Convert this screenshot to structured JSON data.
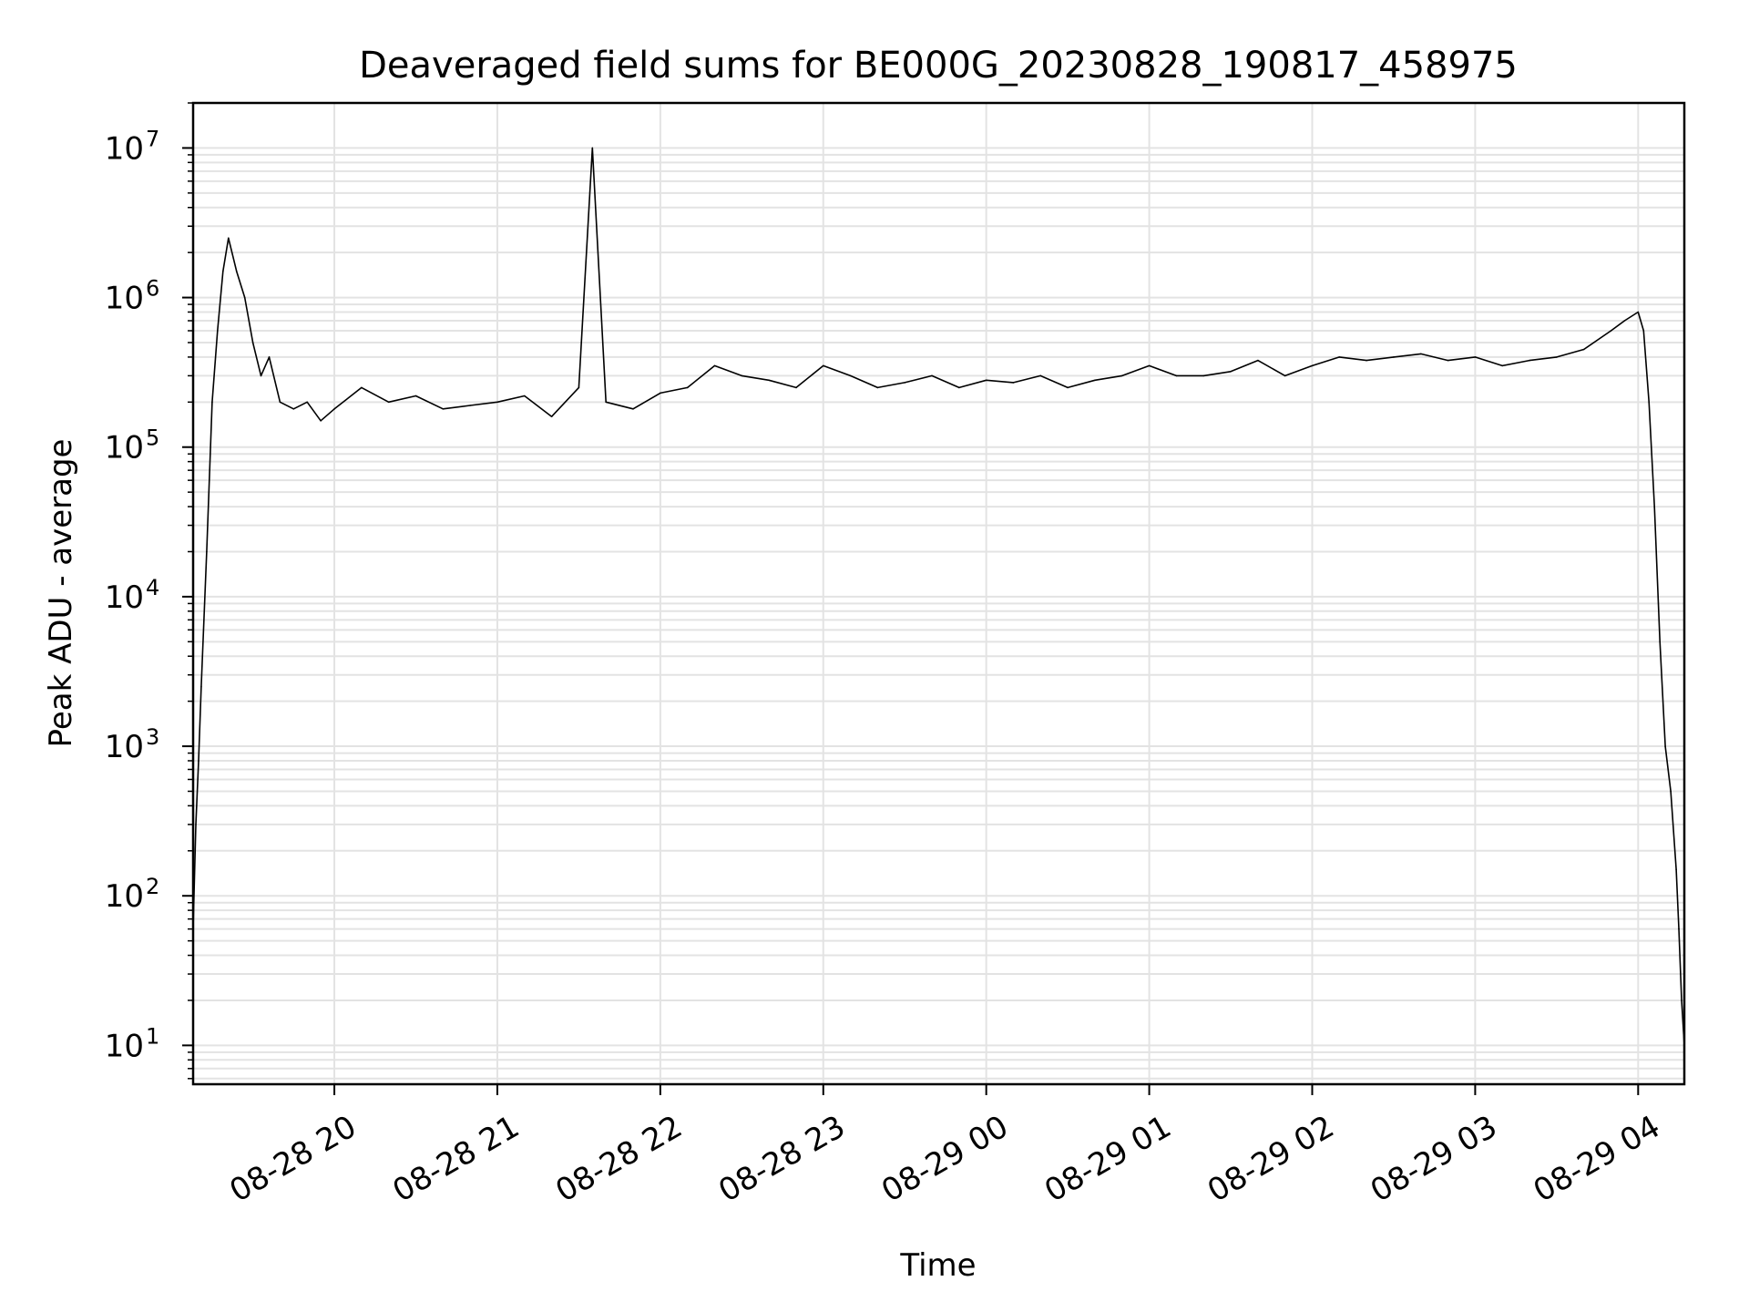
{
  "chart_data": {
    "type": "line",
    "title": "Deaveraged field sums for BE000G_20230828_190817_458975",
    "xlabel": "Time",
    "ylabel": "Peak ADU - average",
    "yscale": "log",
    "ylim": [
      5.5,
      20000000
    ],
    "xlim": [
      "2023-08-28 19:08",
      "2023-08-29 04:17"
    ],
    "x_tick_labels": [
      "08-28 20",
      "08-28 21",
      "08-28 22",
      "08-28 23",
      "08-29 00",
      "08-29 01",
      "08-29 02",
      "08-29 03",
      "08-29 04"
    ],
    "y_tick_labels": [
      {
        "base": "10",
        "exp": "1"
      },
      {
        "base": "10",
        "exp": "2"
      },
      {
        "base": "10",
        "exp": "3"
      },
      {
        "base": "10",
        "exp": "4"
      },
      {
        "base": "10",
        "exp": "5"
      },
      {
        "base": "10",
        "exp": "6"
      },
      {
        "base": "10",
        "exp": "7"
      }
    ],
    "grid": true,
    "line_color": "#000000",
    "grid_color": "#e3e3e3",
    "series": [
      {
        "x": [
          "2023-08-28 19:08",
          "2023-08-28 19:09",
          "2023-08-28 19:10",
          "2023-08-28 19:11",
          "2023-08-28 19:13",
          "2023-08-28 19:15",
          "2023-08-28 19:17",
          "2023-08-28 19:19",
          "2023-08-28 19:21",
          "2023-08-28 19:24",
          "2023-08-28 19:27",
          "2023-08-28 19:30",
          "2023-08-28 19:33",
          "2023-08-28 19:36",
          "2023-08-28 19:40",
          "2023-08-28 19:45",
          "2023-08-28 19:50",
          "2023-08-28 19:55",
          "2023-08-28 20:00",
          "2023-08-28 20:10",
          "2023-08-28 20:20",
          "2023-08-28 20:30",
          "2023-08-28 20:40",
          "2023-08-28 20:50",
          "2023-08-28 21:00",
          "2023-08-28 21:10",
          "2023-08-28 21:20",
          "2023-08-28 21:30",
          "2023-08-28 21:35",
          "2023-08-28 21:40",
          "2023-08-28 21:50",
          "2023-08-28 22:00",
          "2023-08-28 22:10",
          "2023-08-28 22:20",
          "2023-08-28 22:30",
          "2023-08-28 22:40",
          "2023-08-28 22:50",
          "2023-08-28 23:00",
          "2023-08-28 23:10",
          "2023-08-28 23:20",
          "2023-08-28 23:30",
          "2023-08-28 23:40",
          "2023-08-28 23:50",
          "2023-08-29 00:00",
          "2023-08-29 00:10",
          "2023-08-29 00:20",
          "2023-08-29 00:30",
          "2023-08-29 00:40",
          "2023-08-29 00:50",
          "2023-08-29 01:00",
          "2023-08-29 01:10",
          "2023-08-29 01:20",
          "2023-08-29 01:30",
          "2023-08-29 01:40",
          "2023-08-29 01:50",
          "2023-08-29 02:00",
          "2023-08-29 02:10",
          "2023-08-29 02:20",
          "2023-08-29 02:30",
          "2023-08-29 02:40",
          "2023-08-29 02:50",
          "2023-08-29 03:00",
          "2023-08-29 03:10",
          "2023-08-29 03:20",
          "2023-08-29 03:30",
          "2023-08-29 03:40",
          "2023-08-29 03:50",
          "2023-08-29 03:55",
          "2023-08-29 04:00",
          "2023-08-29 04:02",
          "2023-08-29 04:04",
          "2023-08-29 04:06",
          "2023-08-29 04:08",
          "2023-08-29 04:10",
          "2023-08-29 04:12",
          "2023-08-29 04:14",
          "2023-08-29 04:15",
          "2023-08-29 04:16",
          "2023-08-29 04:17"
        ],
        "y": [
          60,
          300,
          800,
          2500,
          20000,
          200000,
          600000,
          1500000,
          2500000,
          1500000,
          1000000,
          500000,
          300000,
          400000,
          200000,
          180000,
          200000,
          150000,
          180000,
          250000,
          200000,
          220000,
          180000,
          190000,
          200000,
          220000,
          160000,
          250000,
          10000000,
          200000,
          180000,
          230000,
          250000,
          350000,
          300000,
          280000,
          250000,
          350000,
          300000,
          250000,
          270000,
          300000,
          250000,
          280000,
          270000,
          300000,
          250000,
          280000,
          300000,
          350000,
          300000,
          300000,
          320000,
          380000,
          300000,
          350000,
          400000,
          380000,
          400000,
          420000,
          380000,
          400000,
          350000,
          380000,
          400000,
          450000,
          600000,
          700000,
          800000,
          600000,
          200000,
          40000,
          5000,
          1000,
          500,
          150,
          60,
          20,
          10
        ]
      }
    ]
  }
}
